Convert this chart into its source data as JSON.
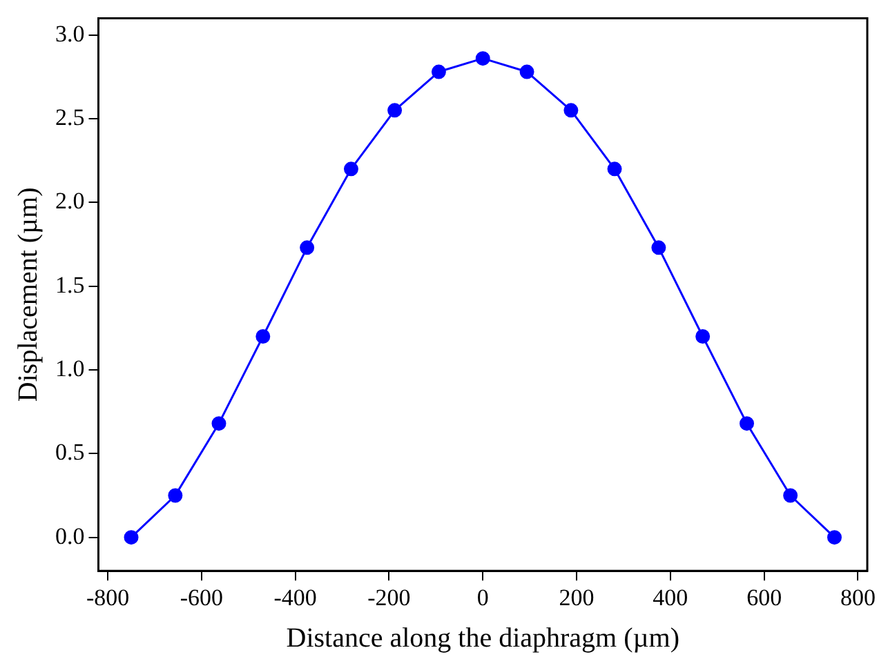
{
  "chart_data": {
    "type": "line",
    "xlabel": "Distance along the diaphragm (µm)",
    "ylabel": "Displacement (µm)",
    "x": [
      -750,
      -656,
      -563,
      -469,
      -375,
      -281,
      -188,
      -94,
      0,
      94,
      188,
      281,
      375,
      469,
      563,
      656,
      750
    ],
    "series": [
      {
        "color": "#0000ff",
        "values": [
          0,
          0.25,
          0.68,
          1.2,
          1.73,
          2.2,
          2.55,
          2.78,
          2.86,
          2.78,
          2.55,
          2.2,
          1.73,
          1.2,
          0.68,
          0.25,
          0
        ]
      }
    ],
    "xlim": [
      -820,
      820
    ],
    "xticks": [
      -800,
      -600,
      -400,
      -200,
      0,
      200,
      400,
      600,
      800
    ],
    "ylim": [
      -0.2,
      3.1
    ],
    "yticks": [
      {
        "value": 0,
        "label": "0.0"
      },
      0.5,
      {
        "value": 1,
        "label": "1.0"
      },
      1.5,
      {
        "value": 2,
        "label": "2.0"
      },
      2.5,
      {
        "value": 3,
        "label": "3.0"
      }
    ],
    "grid": false,
    "legend": false,
    "marker": "circle",
    "line_style": "solid"
  }
}
